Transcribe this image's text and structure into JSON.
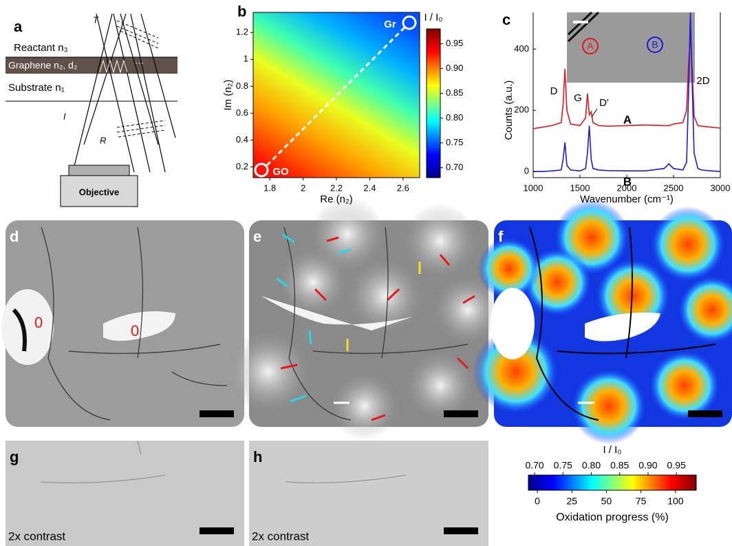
{
  "panel_labels": [
    "a",
    "b",
    "c",
    "d",
    "e",
    "f",
    "g",
    "h"
  ],
  "diagram": {
    "transmitted": "T",
    "reactant": "Reactant n₃",
    "graphene": "Graphene n₂, d₂",
    "dots": "···",
    "substrate": "Substrate n₁",
    "incident": "I",
    "reflected": "R",
    "objective": "Objective"
  },
  "chart_data": [
    {
      "type": "heatmap",
      "xlabel": "Re (n₂)",
      "ylabel": "Im (n₂)",
      "xlim": [
        1.7,
        2.7
      ],
      "ylim": [
        0.12,
        1.35
      ],
      "xticks": [
        1.8,
        2,
        2.2,
        2.4,
        2.6
      ],
      "yticks": [
        0.2,
        0.4,
        0.6,
        0.8,
        1,
        1.2
      ],
      "annotations": [
        "Gr",
        "GO"
      ],
      "colorbar": {
        "title": "I / I₀",
        "clim": [
          0.68,
          0.98
        ],
        "ticks": [
          {
            "value": 0.7,
            "label": "0.70"
          },
          0.75,
          {
            "value": 0.8,
            "label": "0.80"
          },
          0.85,
          {
            "value": 0.9,
            "label": "0.90"
          },
          0.95
        ]
      }
    },
    {
      "type": "line",
      "xlabel": "Wavenumber (cm⁻¹)",
      "ylabel": "Counts (a.u.)",
      "xlim": [
        1000,
        3000
      ],
      "ylim": [
        -20,
        520
      ],
      "xticks": [
        1000,
        1500,
        2000,
        2500,
        3000
      ],
      "yticks": [
        0,
        200,
        400
      ],
      "x": [
        1000,
        1100,
        1200,
        1300,
        1320,
        1340,
        1360,
        1400,
        1500,
        1560,
        1580,
        1600,
        1620,
        1640,
        1700,
        1800,
        2000,
        2200,
        2400,
        2450,
        2500,
        2600,
        2640,
        2660,
        2680,
        2700,
        2720,
        2760,
        2800,
        2900,
        3000
      ],
      "series": [
        {
          "name": "A",
          "color": "#e8141c",
          "values": [
            140,
            145,
            150,
            160,
            220,
            335,
            200,
            155,
            150,
            175,
            255,
            185,
            195,
            160,
            150,
            148,
            150,
            152,
            150,
            150,
            155,
            160,
            200,
            350,
            440,
            330,
            180,
            150,
            148,
            145,
            142
          ]
        },
        {
          "name": "B",
          "color": "#1a1adc",
          "values": [
            0,
            0,
            2,
            5,
            40,
            95,
            20,
            5,
            2,
            10,
            60,
            150,
            40,
            10,
            5,
            3,
            2,
            2,
            10,
            25,
            10,
            5,
            30,
            250,
            520,
            280,
            60,
            10,
            5,
            2,
            0
          ]
        }
      ],
      "annotations": [
        "D",
        "G",
        "D'",
        "2D"
      ],
      "inset_labels": [
        "A",
        "B"
      ]
    }
  ],
  "images": {
    "d_labels": [
      "0",
      "0"
    ],
    "g_caption": "2x contrast",
    "h_caption": "2x contrast"
  },
  "colorbar": {
    "title": "I / I₀",
    "clim": [
      0.689,
      0.985
    ],
    "ticks": [
      {
        "value": 0.7,
        "label": "0.70"
      },
      0.75,
      {
        "value": 0.8,
        "label": "0.80"
      },
      0.85,
      {
        "value": 0.9,
        "label": "0.90"
      },
      0.95
    ],
    "progress_lim": [
      -6.5,
      115
    ],
    "progress_ticks": [
      0,
      25,
      50,
      75,
      100
    ],
    "progress_label": "Oxidation progress (%)"
  }
}
